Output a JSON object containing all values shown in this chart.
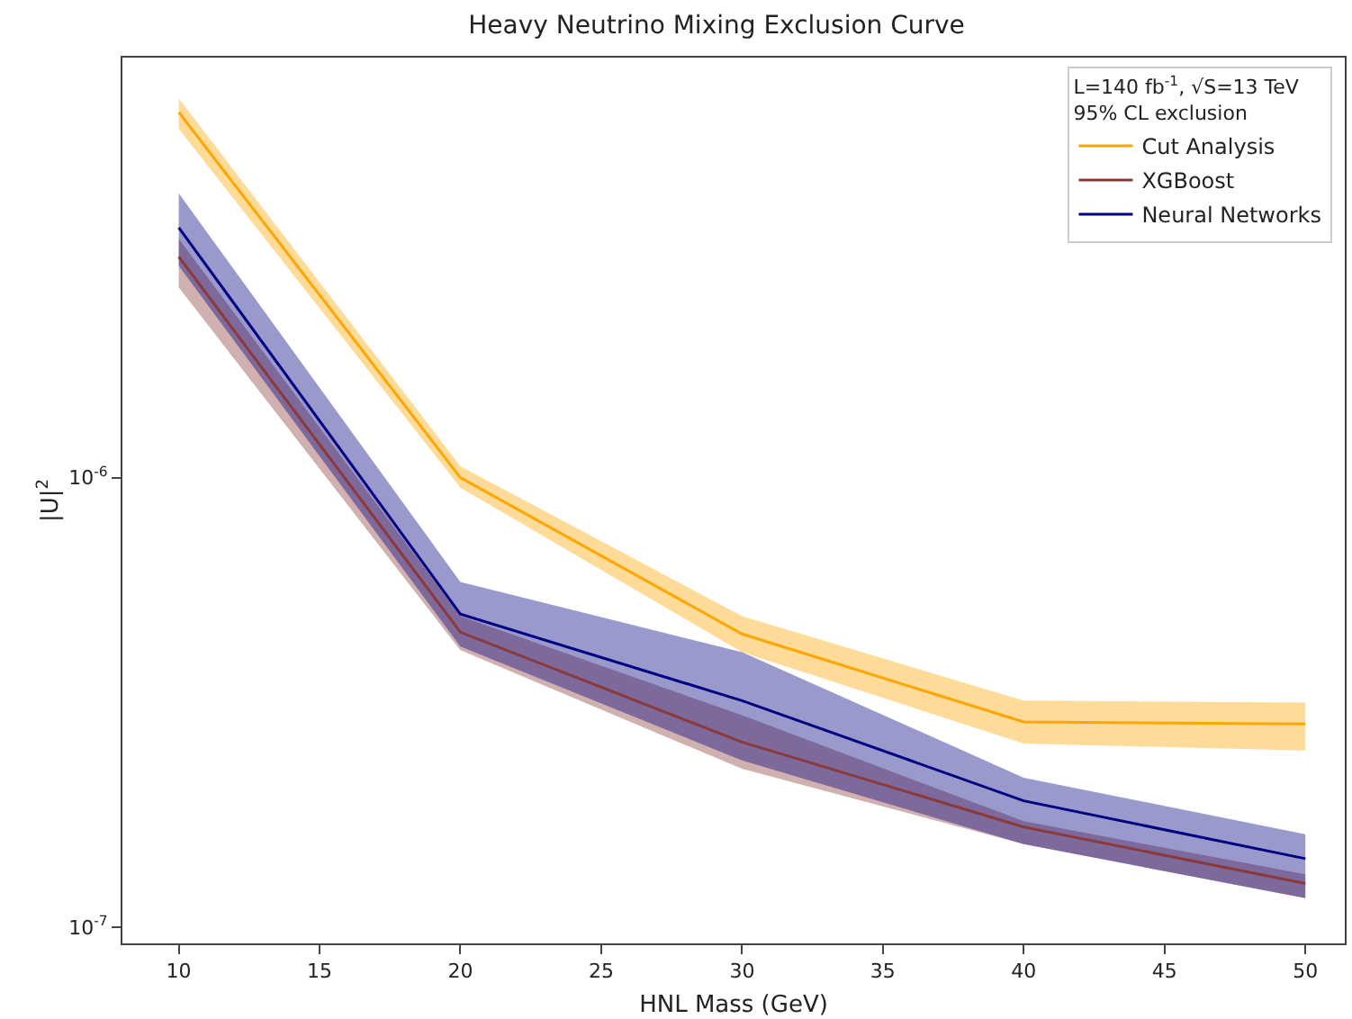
{
  "chart_data": {
    "type": "line",
    "title": "Heavy Neutrino Mixing Exclusion Curve",
    "xlabel": "HNL Mass (GeV)",
    "ylabel": "|U|$^{2}$",
    "legend_title": "L=140 fb$^{-1}$, √S=13 TeV\n95% CL exclusion",
    "log": "y",
    "grid": false,
    "legend": "top right",
    "marker": "none",
    "line_style": "solid",
    "x": [
      10,
      20,
      30,
      40,
      50
    ],
    "xlim": [
      8,
      51.4
    ],
    "xticks": [
      10,
      15,
      20,
      25,
      30,
      35,
      40,
      45,
      50
    ],
    "ylim": [
      9.2e-08,
      8.6e-06
    ],
    "yticks": [
      {
        "value": 1e-07,
        "label": "10$^{-7}$"
      },
      {
        "value": 1e-06,
        "label": "10$^{-6}$"
      }
    ],
    "series": [
      {
        "name": "Cut Analysis",
        "color": "#ffa500",
        "values": [
          6.5e-06,
          1e-06,
          4.49e-07,
          2.86e-07,
          2.83e-07
        ],
        "lower": [
          5.97e-06,
          9.5e-07,
          4.09e-07,
          2.56e-07,
          2.47e-07
        ],
        "upper": [
          6.98e-06,
          1.06e-06,
          4.92e-07,
          3.19e-07,
          3.16e-07
        ]
      },
      {
        "name": "XGBoost",
        "color": "#8b3a3a",
        "values": [
          3.1e-06,
          4.53e-07,
          2.58e-07,
          1.67e-07,
          1.25e-07
        ],
        "lower": [
          2.65e-06,
          4.13e-07,
          2.25e-07,
          1.53e-07,
          1.16e-07
        ],
        "upper": [
          3.4e-06,
          4.92e-07,
          2.96e-07,
          1.72e-07,
          1.31e-07
        ]
      },
      {
        "name": "Neural Networks",
        "color": "#000080",
        "values": [
          3.6e-06,
          4.97e-07,
          3.19e-07,
          1.91e-07,
          1.42e-07
        ],
        "lower": [
          2.96e-06,
          4.21e-07,
          2.35e-07,
          1.53e-07,
          1.16e-07
        ],
        "upper": [
          4.29e-06,
          5.86e-07,
          4.09e-07,
          2.15e-07,
          1.61e-07
        ]
      }
    ]
  }
}
